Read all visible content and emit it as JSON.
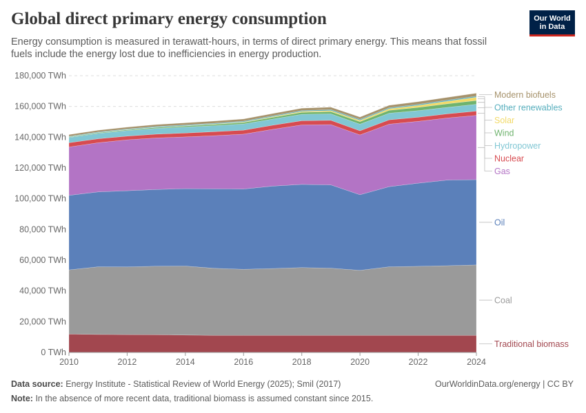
{
  "header": {
    "title": "Global direct primary energy consumption",
    "subtitle": "Energy consumption is measured in terawatt-hours, in terms of direct primary energy. This means that fossil fuels include the energy lost due to inefficiencies in energy production."
  },
  "logo": {
    "line1": "Our World",
    "line2": "in Data"
  },
  "footer": {
    "source_label": "Data source:",
    "source_text": "Energy Institute - Statistical Review of World Energy (2025); Smil (2017)",
    "note_label": "Note:",
    "note_text": "In the absence of more recent data, traditional biomass is assumed constant since 2015.",
    "credit": "OurWorldinData.org/energy | CC BY"
  },
  "chart_data": {
    "type": "area",
    "stacked": true,
    "x": [
      2010,
      2011,
      2012,
      2013,
      2014,
      2015,
      2016,
      2017,
      2018,
      2019,
      2020,
      2021,
      2022,
      2023,
      2024
    ],
    "ylim": [
      0,
      180000
    ],
    "yticks": [
      0,
      20000,
      40000,
      60000,
      80000,
      100000,
      120000,
      140000,
      160000,
      180000
    ],
    "ytick_labels": [
      "0 TWh",
      "20,000 TWh",
      "40,000 TWh",
      "60,000 TWh",
      "80,000 TWh",
      "100,000 TWh",
      "120,000 TWh",
      "140,000 TWh",
      "160,000 TWh",
      "180,000 TWh"
    ],
    "xticks": [
      2010,
      2012,
      2014,
      2016,
      2018,
      2020,
      2022,
      2024
    ],
    "grid": "horizontal dashed",
    "legend_placement": "right, labels at series ends",
    "series": [
      {
        "name": "Traditional biomass",
        "color": "#a2474f",
        "values": [
          11900,
          11700,
          11600,
          11500,
          11300,
          11100,
          11100,
          11100,
          11100,
          11100,
          11100,
          11100,
          11100,
          11100,
          11100
        ]
      },
      {
        "name": "Coal",
        "color": "#9a9a9a",
        "values": [
          41800,
          44000,
          44000,
          44600,
          44900,
          43600,
          43000,
          43500,
          44100,
          43700,
          42300,
          44600,
          44900,
          45300,
          45800
        ]
      },
      {
        "name": "Oil",
        "color": "#5b80ba",
        "values": [
          48500,
          48700,
          49600,
          49900,
          50300,
          51700,
          52200,
          53600,
          54100,
          54200,
          49200,
          52100,
          54100,
          55700,
          55500
        ]
      },
      {
        "name": "Gas",
        "color": "#b374c5",
        "values": [
          31400,
          32000,
          33100,
          33500,
          33700,
          34600,
          35700,
          36900,
          38700,
          39200,
          38900,
          40700,
          40200,
          40400,
          41800
        ]
      },
      {
        "name": "Nuclear",
        "color": "#d74b50",
        "values": [
          2800,
          2600,
          2400,
          2500,
          2500,
          2600,
          2600,
          2700,
          2700,
          2800,
          2700,
          2800,
          2700,
          2700,
          2800
        ]
      },
      {
        "name": "Hydropower",
        "color": "#81c7d4",
        "values": [
          3400,
          3500,
          3600,
          3700,
          3900,
          3900,
          4000,
          4000,
          4200,
          4200,
          4300,
          4300,
          4300,
          4200,
          4400
        ]
      },
      {
        "name": "Wind",
        "color": "#6fb36e",
        "values": [
          350,
          440,
          520,
          640,
          710,
          830,
          960,
          1130,
          1270,
          1410,
          1590,
          1860,
          2100,
          2330,
          2500
        ]
      },
      {
        "name": "Solar",
        "color": "#f2da68",
        "values": [
          30,
          70,
          100,
          140,
          200,
          260,
          330,
          440,
          570,
          700,
          860,
          1030,
          1310,
          1660,
          2100
        ]
      },
      {
        "name": "Other renewables",
        "color": "#56aebd",
        "values": [
          380,
          400,
          430,
          460,
          490,
          520,
          540,
          570,
          590,
          610,
          640,
          660,
          680,
          700,
          720
        ]
      },
      {
        "name": "Modern biofuels",
        "color": "#a6926b",
        "values": [
          1100,
          1100,
          1150,
          1250,
          1330,
          1370,
          1390,
          1430,
          1540,
          1620,
          1480,
          1600,
          1700,
          1820,
          1900
        ]
      }
    ]
  }
}
